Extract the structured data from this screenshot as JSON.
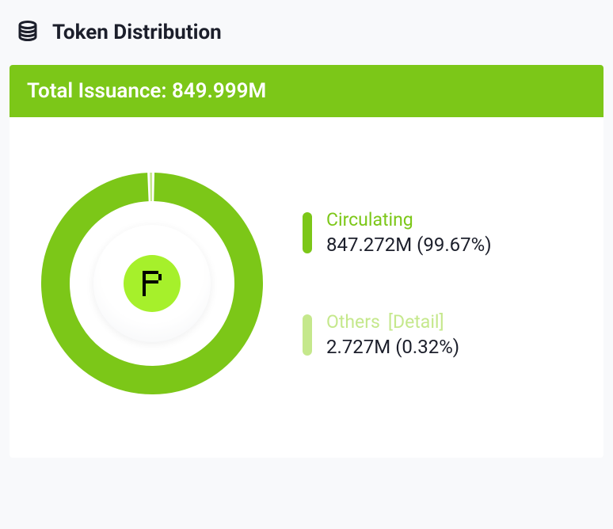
{
  "header": {
    "title": "Token Distribution",
    "icon_color": "#1c1f2b"
  },
  "banner": {
    "text": "Total Issuance: 849.999M",
    "background": "#7cc718"
  },
  "chart": {
    "type": "donut",
    "segments": [
      {
        "key": "circulating",
        "percent": 99.67,
        "color": "#7cc718"
      },
      {
        "key": "others",
        "percent": 0.32,
        "color": "#c5e88c"
      }
    ],
    "ring_outer_radius": 140,
    "ring_inner_radius": 104,
    "background": "#ffffff",
    "logo_badge_color": "#a6f02b",
    "logo_glyph_color": "#000000"
  },
  "legend": [
    {
      "key": "circulating",
      "label": "Circulating",
      "label_color": "#7cc718",
      "value": "847.272M (99.67%)",
      "swatch_color": "#7cc718",
      "detail": null
    },
    {
      "key": "others",
      "label": "Others",
      "label_color": "#c5e88c",
      "value": "2.727M (0.32%)",
      "swatch_color": "#c5e88c",
      "detail": "[Detail]"
    }
  ]
}
